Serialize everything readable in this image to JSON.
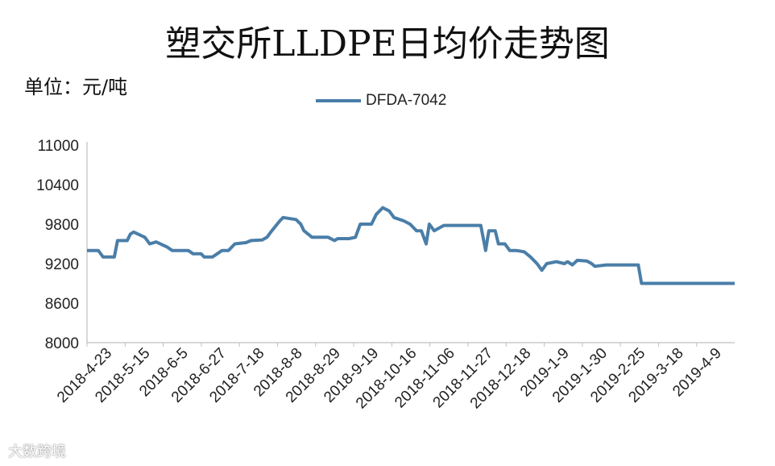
{
  "chart_data": {
    "type": "line",
    "title": "塑交所LLDPE日均价走势图",
    "unit": "单位：元/吨",
    "ylim": [
      8000,
      11000
    ],
    "yticks": [
      8000,
      8600,
      9200,
      9800,
      10400,
      11000
    ],
    "x_tick_labels": [
      "2018-4-23",
      "2018-5-15",
      "2018-6-5",
      "2018-6-27",
      "2018-7-18",
      "2018-8-8",
      "2018-8-29",
      "2018-9-19",
      "2018-10-16",
      "2018-11-06",
      "2018-11-27",
      "2018-12-18",
      "2019-1-9",
      "2019-1-30",
      "2019-2-25",
      "2019-3-18",
      "2019-4-9"
    ],
    "legend_position": "top-center",
    "grid": false,
    "series": [
      {
        "name": "DFDA-7042",
        "color": "#4a7ea8",
        "points": [
          [
            "2018-4-23",
            9400
          ],
          [
            "2018-4-30",
            9400
          ],
          [
            "2018-5-3",
            9300
          ],
          [
            "2018-5-10",
            9300
          ],
          [
            "2018-5-12",
            9550
          ],
          [
            "2018-5-18",
            9550
          ],
          [
            "2018-5-20",
            9650
          ],
          [
            "2018-5-22",
            9680
          ],
          [
            "2018-5-29",
            9600
          ],
          [
            "2018-6-1",
            9500
          ],
          [
            "2018-6-5",
            9530
          ],
          [
            "2018-6-12",
            9450
          ],
          [
            "2018-6-15",
            9400
          ],
          [
            "2018-6-25",
            9400
          ],
          [
            "2018-6-28",
            9350
          ],
          [
            "2018-7-3",
            9350
          ],
          [
            "2018-7-5",
            9300
          ],
          [
            "2018-7-10",
            9300
          ],
          [
            "2018-7-13",
            9350
          ],
          [
            "2018-7-16",
            9400
          ],
          [
            "2018-7-20",
            9400
          ],
          [
            "2018-7-24",
            9500
          ],
          [
            "2018-7-31",
            9520
          ],
          [
            "2018-8-3",
            9550
          ],
          [
            "2018-8-10",
            9560
          ],
          [
            "2018-8-13",
            9600
          ],
          [
            "2018-8-16",
            9700
          ],
          [
            "2018-8-21",
            9850
          ],
          [
            "2018-8-23",
            9900
          ],
          [
            "2018-8-31",
            9870
          ],
          [
            "2018-9-3",
            9800
          ],
          [
            "2018-9-5",
            9700
          ],
          [
            "2018-9-10",
            9600
          ],
          [
            "2018-9-20",
            9600
          ],
          [
            "2018-9-24",
            9550
          ],
          [
            "2018-9-26",
            9580
          ],
          [
            "2018-10-3",
            9580
          ],
          [
            "2018-10-7",
            9600
          ],
          [
            "2018-10-10",
            9800
          ],
          [
            "2018-10-17",
            9800
          ],
          [
            "2018-10-20",
            9950
          ],
          [
            "2018-10-24",
            10050
          ],
          [
            "2018-10-28",
            10000
          ],
          [
            "2018-10-31",
            9900
          ],
          [
            "2018-11-6",
            9850
          ],
          [
            "2018-11-10",
            9800
          ],
          [
            "2018-11-14",
            9700
          ],
          [
            "2018-11-17",
            9700
          ],
          [
            "2018-11-20",
            9500
          ],
          [
            "2018-11-22",
            9800
          ],
          [
            "2018-11-25",
            9700
          ],
          [
            "2018-12-1",
            9780
          ],
          [
            "2018-12-24",
            9780
          ],
          [
            "2018-12-27",
            9400
          ],
          [
            "2018-12-29",
            9700
          ],
          [
            "2019-1-2",
            9700
          ],
          [
            "2019-1-4",
            9500
          ],
          [
            "2019-1-8",
            9500
          ],
          [
            "2019-1-11",
            9400
          ],
          [
            "2019-1-15",
            9400
          ],
          [
            "2019-1-20",
            9380
          ],
          [
            "2019-1-24",
            9300
          ],
          [
            "2019-1-28",
            9200
          ],
          [
            "2019-1-31",
            9100
          ],
          [
            "2019-2-3",
            9200
          ],
          [
            "2019-2-9",
            9230
          ],
          [
            "2019-2-14",
            9200
          ],
          [
            "2019-2-16",
            9230
          ],
          [
            "2019-2-19",
            9180
          ],
          [
            "2019-2-22",
            9250
          ],
          [
            "2019-2-28",
            9240
          ],
          [
            "2019-3-3",
            9200
          ],
          [
            "2019-3-5",
            9160
          ],
          [
            "2019-3-12",
            9180
          ],
          [
            "2019-4-1",
            9180
          ],
          [
            "2019-4-3",
            8900
          ],
          [
            "2019-5-31",
            8900
          ]
        ]
      }
    ]
  },
  "watermark": "大数跨境"
}
